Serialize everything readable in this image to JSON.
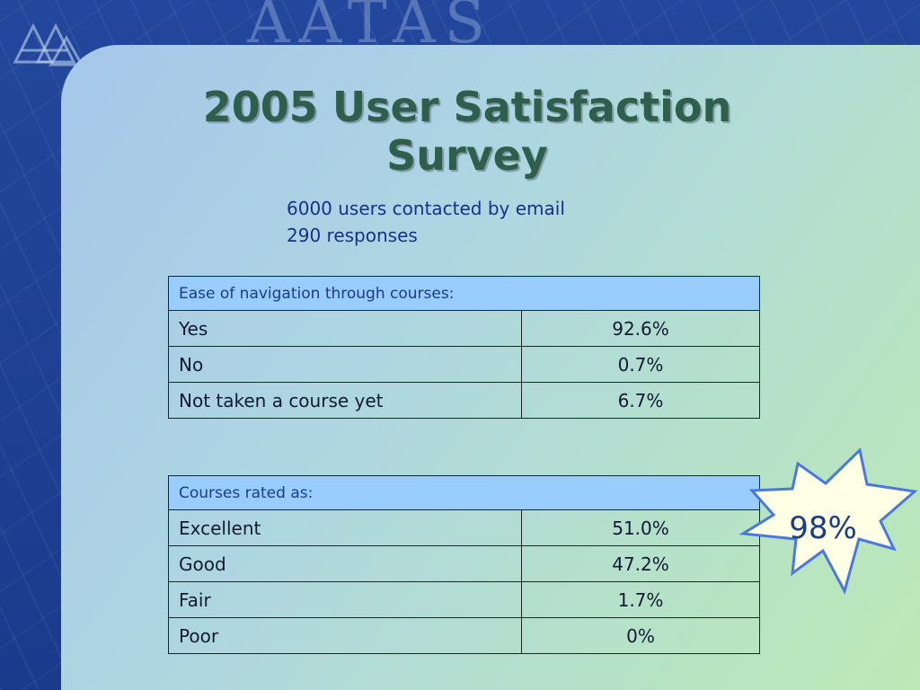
{
  "slide": {
    "banner_text": "AATAS",
    "title": "2005 User Satisfaction Survey",
    "subinfo": [
      "6000 users contacted by email",
      "290 responses"
    ]
  },
  "navigation_table": {
    "header": "Ease of navigation through courses:",
    "rows": [
      {
        "label": "Yes",
        "value": "92.6%"
      },
      {
        "label": "No",
        "value": "0.7%"
      },
      {
        "label": "Not taken a course yet",
        "value": "6.7%"
      }
    ]
  },
  "rating_table": {
    "header": "Courses rated as:",
    "rows": [
      {
        "label": "Excellent",
        "value": "51.0%"
      },
      {
        "label": "Good",
        "value": "47.2%"
      },
      {
        "label": "Fair",
        "value": "1.7%"
      },
      {
        "label": "Poor",
        "value": "0%"
      }
    ]
  },
  "callout": {
    "text": "98%"
  },
  "colors": {
    "frame": "#1f3f92",
    "header_cell": "#99ccff",
    "title": "#2f5e4c",
    "subinfo_text": "#13328a",
    "starburst_fill": "#ffffe6",
    "starburst_stroke": "#4a78e0"
  }
}
